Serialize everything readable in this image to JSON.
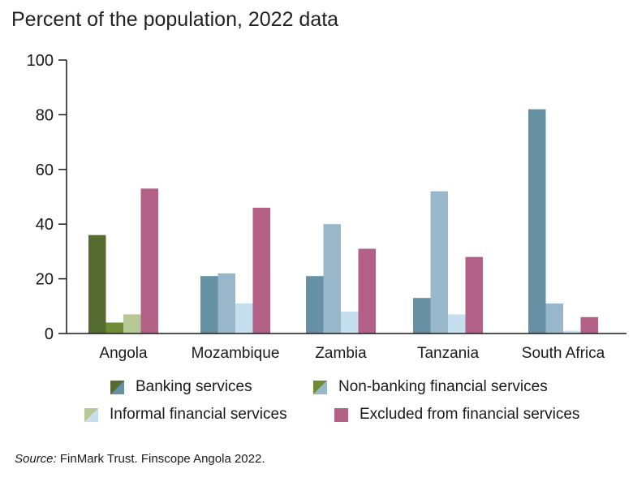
{
  "chart_data": {
    "type": "bar",
    "title": "Percent of the population, 2022 data",
    "xlabel": "",
    "ylabel": "",
    "ylim": [
      0,
      100
    ],
    "yticks": [
      0,
      20,
      40,
      60,
      80,
      100
    ],
    "grid": false,
    "categories": [
      "Angola",
      "Mozambique",
      "Zambia",
      "Tanzania",
      "South Africa"
    ],
    "series": [
      {
        "name": "Banking services",
        "values": [
          36,
          21,
          21,
          13,
          82
        ],
        "colors": [
          "#556b2f",
          "#6690a4",
          "#6690a4",
          "#6690a4",
          "#6690a4"
        ]
      },
      {
        "name": "Non-banking financial services",
        "values": [
          4,
          22,
          40,
          52,
          11
        ],
        "colors": [
          "#6d8c34",
          "#98b7ca",
          "#98b7ca",
          "#98b7ca",
          "#98b7ca"
        ]
      },
      {
        "name": "Informal financial services",
        "values": [
          7,
          11,
          8,
          7,
          1
        ],
        "colors": [
          "#b7c897",
          "#c6dfee",
          "#c6dfee",
          "#c6dfee",
          "#c6dfee"
        ]
      },
      {
        "name": "Excluded from financial services",
        "values": [
          53,
          46,
          31,
          28,
          6
        ],
        "colors": [
          "#b36186",
          "#b36186",
          "#b36186",
          "#b36186",
          "#b36186"
        ]
      }
    ],
    "legend": {
      "placement": "bottom",
      "items": [
        {
          "label": "Banking services",
          "color_a": "#556b2f",
          "color_b": "#6690a4"
        },
        {
          "label": "Non-banking financial services",
          "color_a": "#6d8c34",
          "color_b": "#98b7ca"
        },
        {
          "label": "Informal financial services",
          "color_a": "#b7c897",
          "color_b": "#c6dfee"
        },
        {
          "label": "Excluded from financial services",
          "color_a": "#b36186",
          "color_b": "#b36186"
        }
      ]
    }
  },
  "source": {
    "label": "Source:",
    "text": " FinMark Trust. Finscope Angola 2022."
  }
}
